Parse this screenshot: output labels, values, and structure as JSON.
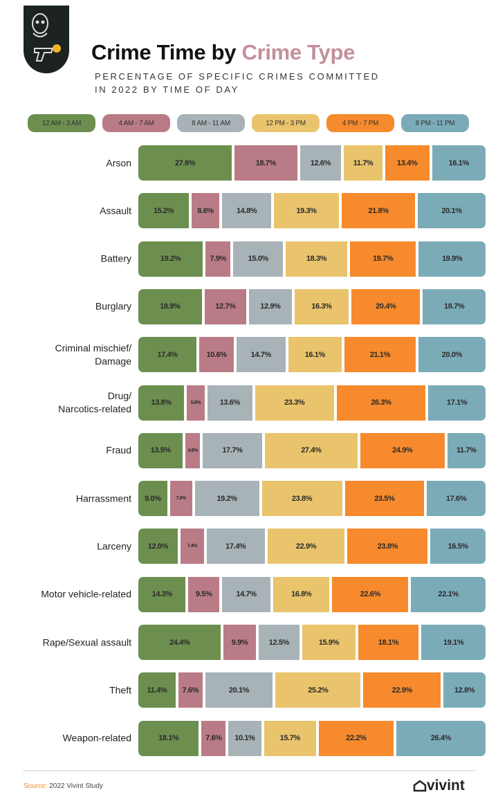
{
  "header": {
    "title_part1": "Crime Time by ",
    "title_part2": "Crime Type",
    "subtitle_line1": "PERCENTAGE OF SPECIFIC CRIMES COMMITTED",
    "subtitle_line2": "IN 2022 BY TIME OF DAY",
    "badge_icon": "masked-criminal-with-gun-icon"
  },
  "chart_data": {
    "type": "bar",
    "orientation": "horizontal",
    "stacked": true,
    "legend_position": "top",
    "categories": [
      "Arson",
      "Assault",
      "Battery",
      "Burglary",
      "Criminal mischief/\nDamage",
      "Drug/\nNarcotics-related",
      "Fraud",
      "Harrassment",
      "Larceny",
      "Motor vehicle-related",
      "Rape/Sexual assault",
      "Theft",
      "Weapon-related"
    ],
    "series": [
      {
        "name": "12 AM - 3 AM",
        "color": "#6c8f4f",
        "values": [
          27.6,
          15.2,
          19.2,
          18.9,
          17.4,
          13.8,
          13.5,
          9.0,
          12.0,
          14.3,
          24.4,
          11.4,
          18.1
        ]
      },
      {
        "name": "4 AM - 7 AM",
        "color": "#b97c86",
        "values": [
          18.7,
          8.6,
          7.9,
          12.7,
          10.6,
          5.8,
          4.8,
          7.0,
          7.4,
          9.5,
          9.9,
          7.6,
          7.6
        ]
      },
      {
        "name": "8 AM - 11 AM",
        "color": "#a8b3b7",
        "values": [
          12.6,
          14.8,
          15.0,
          12.9,
          14.7,
          13.6,
          17.7,
          19.2,
          17.4,
          14.7,
          12.5,
          20.1,
          10.1
        ]
      },
      {
        "name": "12 PM - 3 PM",
        "color": "#e9c46c",
        "values": [
          11.7,
          19.3,
          18.3,
          16.3,
          16.1,
          23.3,
          27.4,
          23.8,
          22.9,
          16.8,
          15.9,
          25.2,
          15.7
        ]
      },
      {
        "name": "4 PM - 7 PM",
        "color": "#f68a2c",
        "values": [
          13.4,
          21.8,
          19.7,
          20.4,
          21.1,
          26.3,
          24.9,
          23.5,
          23.8,
          22.6,
          18.1,
          22.9,
          22.2
        ]
      },
      {
        "name": "8 PM - 11 PM",
        "color": "#7cabb8",
        "values": [
          16.1,
          20.1,
          19.9,
          18.7,
          20.0,
          17.1,
          11.7,
          17.6,
          16.5,
          22.1,
          19.1,
          12.8,
          26.4
        ]
      }
    ],
    "value_format": "%"
  },
  "footer": {
    "source_label": "Source:",
    "source_text": " 2022 Vivint Study",
    "logo_text": "vivint",
    "logo_icon": "house-icon"
  }
}
